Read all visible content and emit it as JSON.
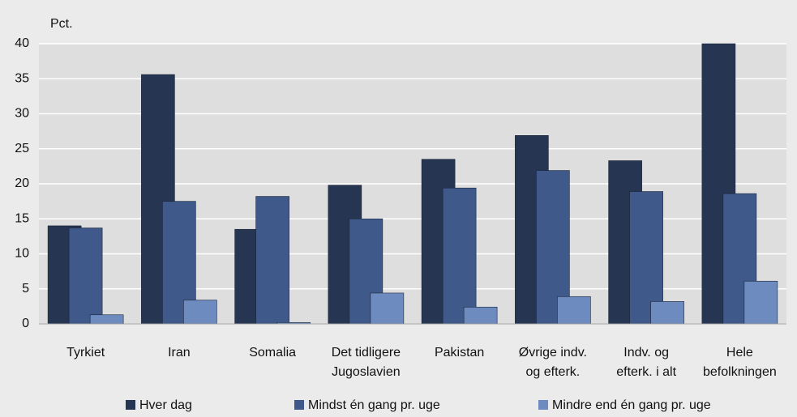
{
  "chart_data": {
    "type": "bar",
    "y_label": "Pct.",
    "categories": [
      [
        "Tyrkiet"
      ],
      [
        "Iran"
      ],
      [
        "Somalia"
      ],
      [
        "Det tidligere",
        "Jugoslavien"
      ],
      [
        "Pakistan"
      ],
      [
        "Øvrige indv.",
        "og efterk."
      ],
      [
        "Indv. og",
        "efterk. i alt"
      ],
      [
        "Hele",
        "befolkningen"
      ]
    ],
    "series": [
      {
        "name": "Hver dag",
        "color": "#263552",
        "values": [
          14,
          35.6,
          13.5,
          19.8,
          23.5,
          26.9,
          23.3,
          40
        ]
      },
      {
        "name": "Mindst én gang pr. uge",
        "color": "#3f5a8a",
        "values": [
          13.7,
          17.5,
          18.2,
          15,
          19.4,
          21.9,
          18.9,
          18.6
        ]
      },
      {
        "name": "Mindre end én gang pr. uge",
        "color": "#6d8bbf",
        "values": [
          1.3,
          3.4,
          0.2,
          4.4,
          2.4,
          3.9,
          3.2,
          6.1
        ]
      }
    ],
    "ylim": [
      0,
      40
    ],
    "yticks": [
      0,
      5,
      10,
      15,
      20,
      25,
      30,
      35,
      40
    ],
    "grid": true
  }
}
